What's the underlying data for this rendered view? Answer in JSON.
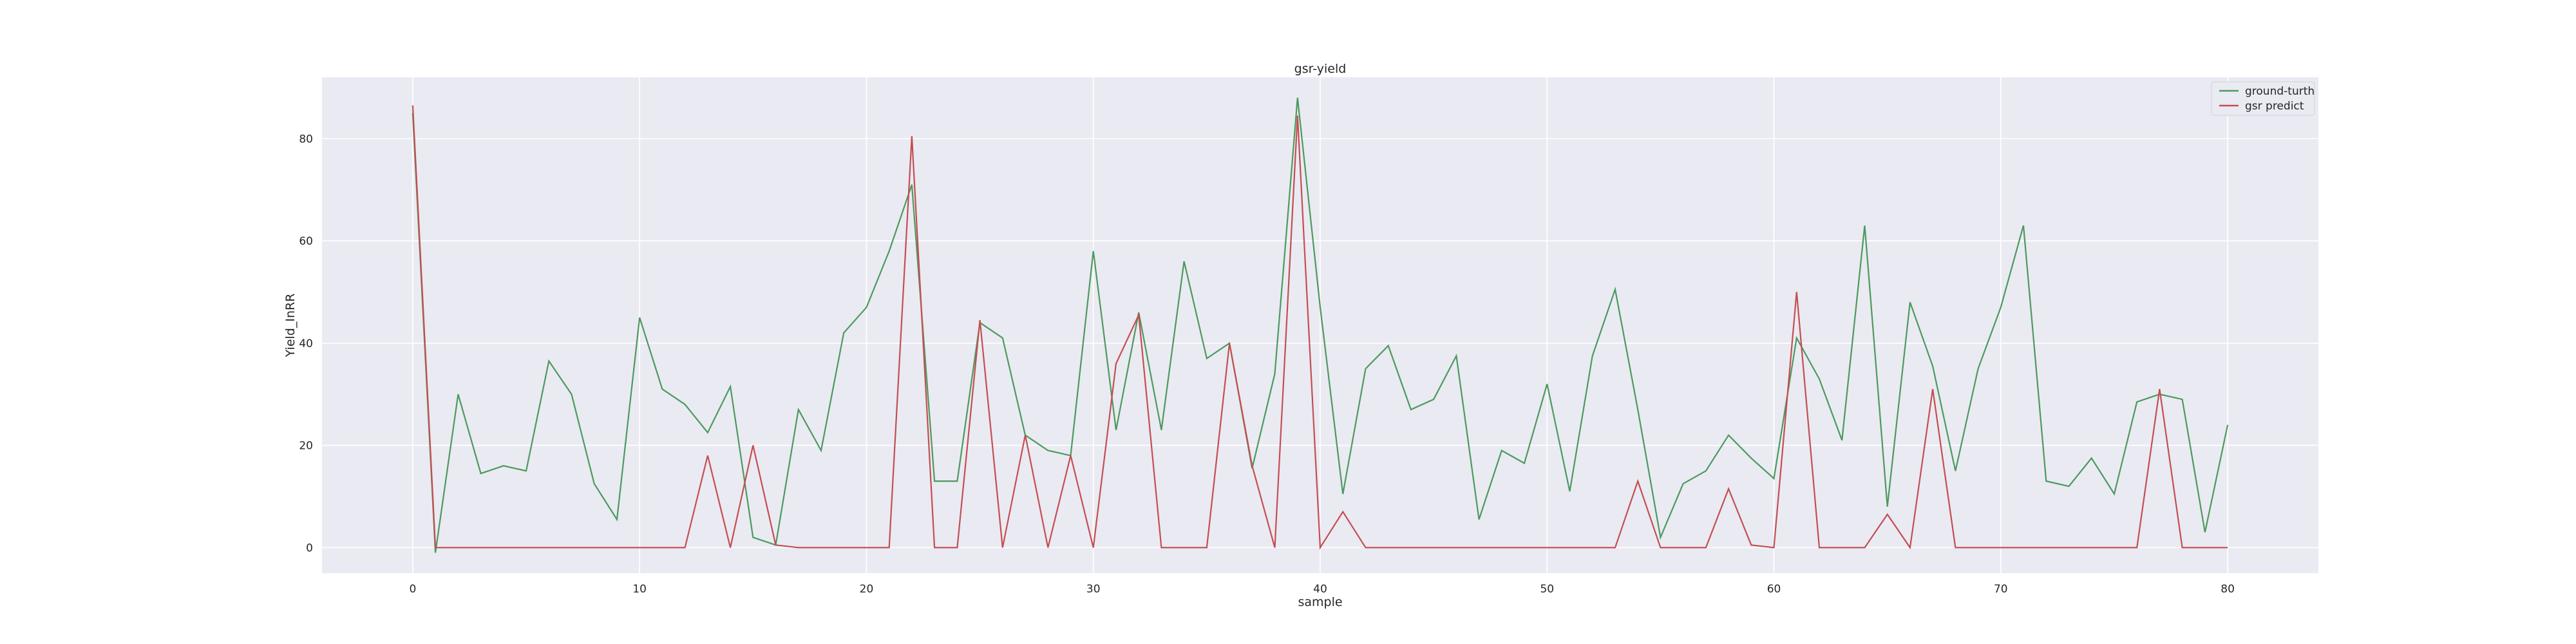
{
  "chart_data": {
    "type": "line",
    "title": "gsr-yield",
    "xlabel": "sample",
    "ylabel": "Yield_InRR",
    "xlim": [
      -4,
      84
    ],
    "ylim": [
      -5,
      92
    ],
    "xticks": [
      0,
      10,
      20,
      30,
      40,
      50,
      60,
      70,
      80
    ],
    "yticks": [
      0,
      20,
      40,
      60,
      80
    ],
    "grid": true,
    "legend_position": "top-right",
    "background": "#eaeaf2",
    "series": [
      {
        "name": "ground-turth",
        "color": "#4b9a5e",
        "values": [
          85,
          -1,
          30,
          14.5,
          16,
          15,
          36.5,
          30,
          12.5,
          5.5,
          45,
          31,
          28,
          22.5,
          31.5,
          2,
          0.5,
          27,
          19,
          42,
          47,
          58,
          71,
          13,
          13,
          44,
          41,
          22,
          19,
          18,
          58,
          23,
          46,
          23,
          56,
          37,
          40,
          15.5,
          34,
          88,
          47,
          10.5,
          35,
          39.5,
          27,
          29,
          37.5,
          5.5,
          19,
          16.5,
          32,
          11,
          37.5,
          50.5,
          27,
          2,
          12.5,
          15,
          22,
          17.5,
          13.5,
          41,
          33,
          21,
          63,
          8,
          48,
          35.5,
          15,
          35,
          47,
          63,
          13,
          12,
          17.5,
          10.5,
          28.5,
          30,
          29,
          3,
          24
        ]
      },
      {
        "name": "gsr predict",
        "color": "#c44e52",
        "values": [
          86.5,
          0,
          0,
          0,
          0,
          0,
          0,
          0,
          0,
          0,
          0,
          0,
          0,
          18,
          0,
          20,
          0.5,
          0,
          0,
          0,
          0,
          0,
          80.5,
          0,
          0,
          44.5,
          0,
          22,
          0,
          18,
          0,
          36,
          45.5,
          0,
          0,
          0,
          40,
          16,
          0,
          84.5,
          0,
          7,
          0,
          0,
          0,
          0,
          0,
          0,
          0,
          0,
          0,
          0,
          0,
          0,
          13,
          0,
          0,
          0,
          11.5,
          0.5,
          0,
          50,
          0,
          0,
          0,
          6.5,
          0,
          31,
          0,
          0,
          0,
          0,
          0,
          0,
          0,
          0,
          0,
          31,
          0,
          0,
          0
        ]
      }
    ]
  }
}
